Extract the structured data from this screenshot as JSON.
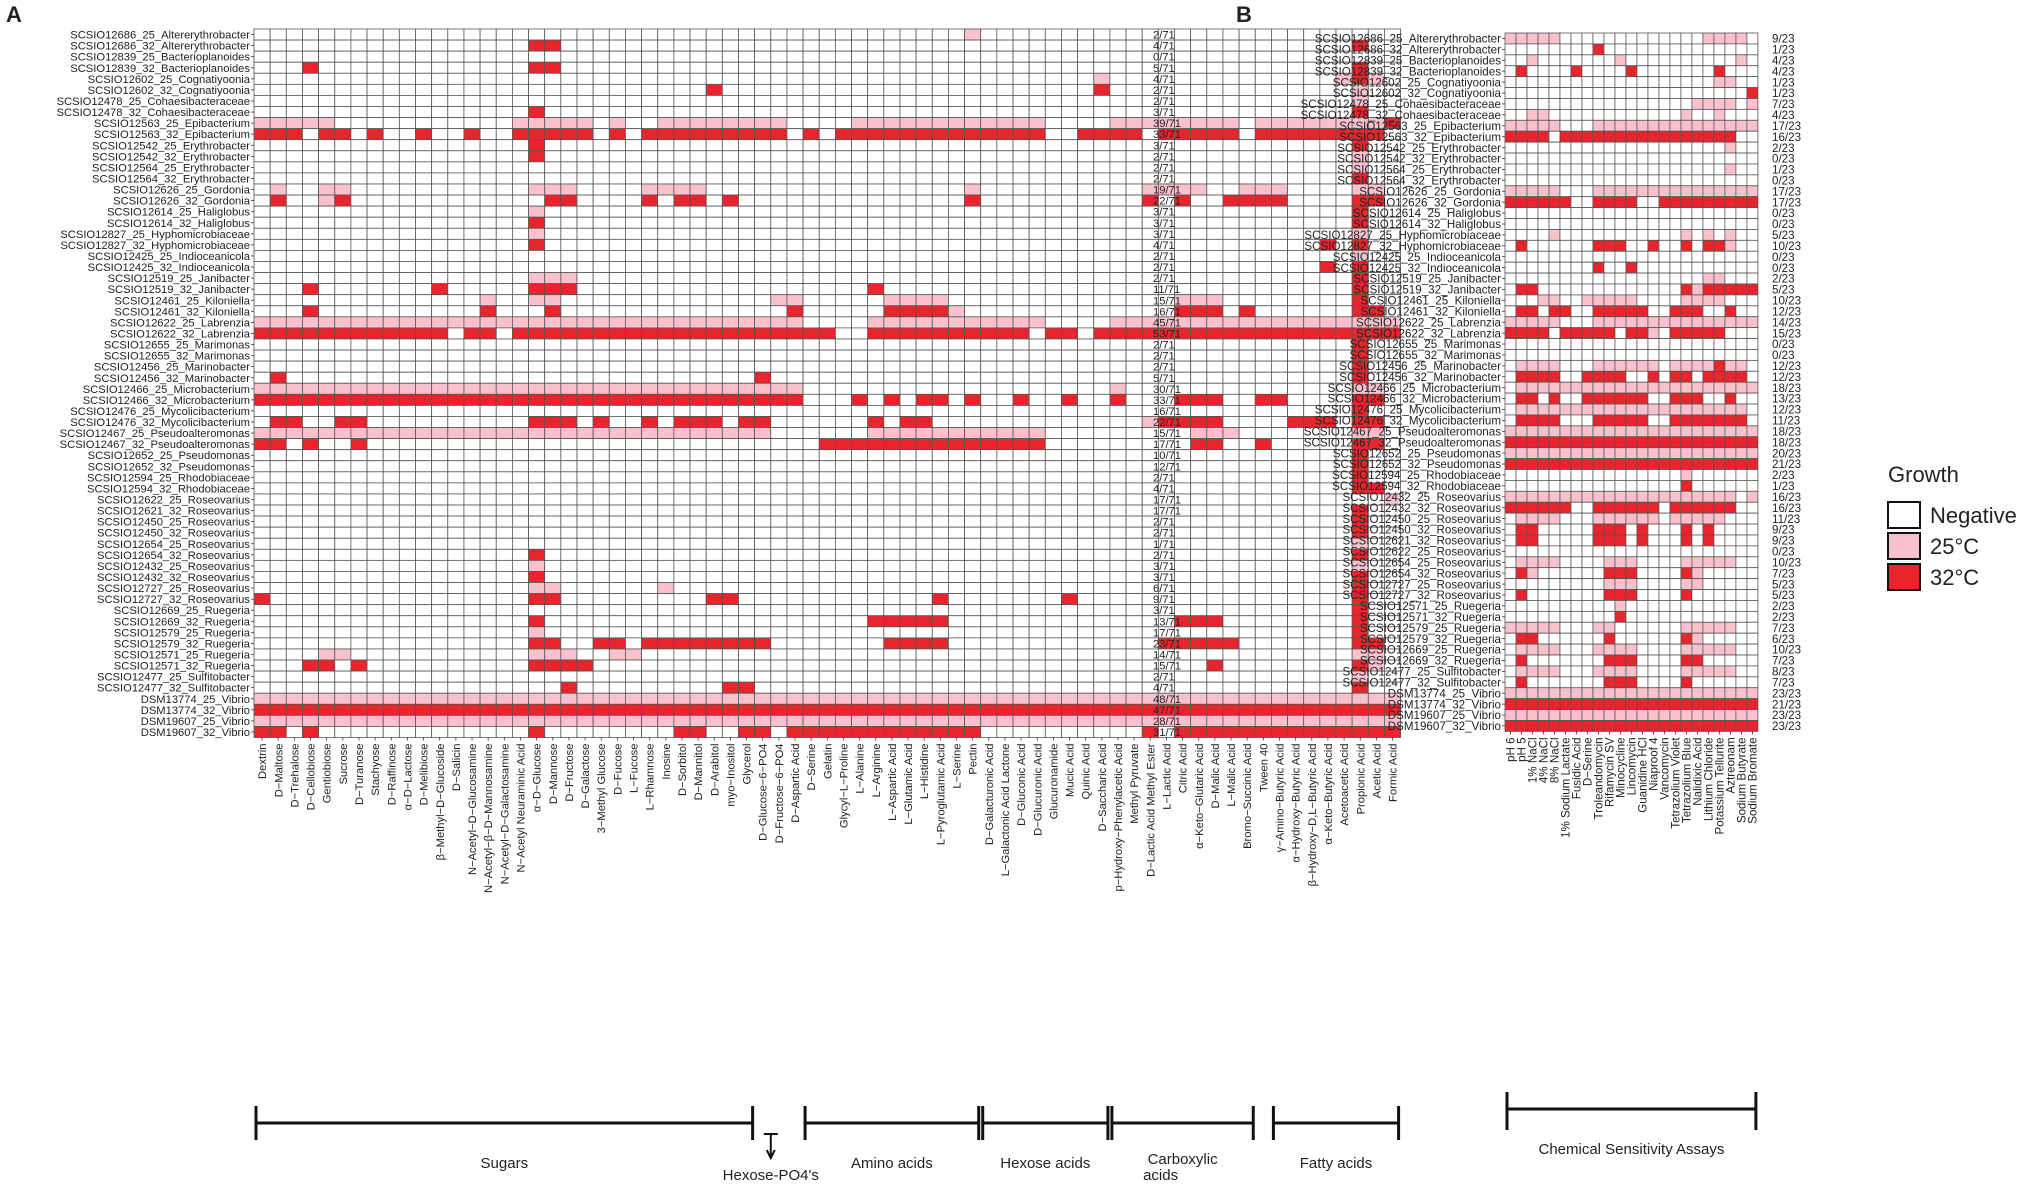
{
  "figure_labels": {
    "A": "A",
    "B": "B"
  },
  "colors": {
    "negative": "#ffffff",
    "c25": "#f8c1cb",
    "c32": "#e8242d",
    "grid": "#555555",
    "text": "#222222"
  },
  "legend": {
    "title": "Growth",
    "entries": [
      {
        "key": "negative",
        "label": "Negative"
      },
      {
        "key": "c25",
        "label": "25°C"
      },
      {
        "key": "c32",
        "label": "32°C"
      }
    ]
  },
  "chart_data": [
    {
      "type": "heatmap",
      "panel": "A",
      "title": "",
      "xlabel": "",
      "ylabel": "",
      "rows": [
        "SCSIO12686_25_Altererythrobacter",
        "SCSIO12686_32_Altererythrobacter",
        "SCSIO12839_25_Bacterioplanoides",
        "SCSIO12839_32_Bacterioplanoides",
        "SCSIO12602_25_Cognatiyoonia",
        "SCSIO12602_32_Cognatiyoonia",
        "SCSIO12478_25_Cohaesibacteraceae",
        "SCSIO12478_32_Cohaesibacteraceae",
        "SCSIO12563_25_Epibacterium",
        "SCSIO12563_32_Epibacterium",
        "SCSIO12542_25_Erythrobacter",
        "SCSIO12542_32_Erythrobacter",
        "SCSIO12564_25_Erythrobacter",
        "SCSIO12564_32_Erythrobacter",
        "SCSIO12626_25_Gordonia",
        "SCSIO12626_32_Gordonia",
        "SCSIO12614_25_Haliglobus",
        "SCSIO12614_32_Haliglobus",
        "SCSIO12827_25_Hyphomicrobiaceae",
        "SCSIO12827_32_Hyphomicrobiaceae",
        "SCSIO12425_25_Indioceanicola",
        "SCSIO12425_32_Indioceanicola",
        "SCSIO12519_25_Janibacter",
        "SCSIO12519_32_Janibacter",
        "SCSIO12461_25_Kiloniella",
        "SCSIO12461_32_Kiloniella",
        "SCSIO12622_25_Labrenzia",
        "SCSIO12622_32_Labrenzia",
        "SCSIO12655_25_Marimonas",
        "SCSIO12655_32_Marimonas",
        "SCSIO12456_25_Marinobacter",
        "SCSIO12456_32_Marinobacter",
        "SCSIO12466_25_Microbacterium",
        "SCSIO12466_32_Microbacterium",
        "SCSIO12476_25_Mycolicibacterium",
        "SCSIO12476_32_Mycolicibacterium",
        "SCSIO12467_25_Pseudoalteromonas",
        "SCSIO12467_32_Pseudoalteromonas",
        "SCSIO12652_25_Pseudomonas",
        "SCSIO12652_32_Pseudomonas",
        "SCSIO12594_25_Rhodobiaceae",
        "SCSIO12594_32_Rhodobiaceae",
        "SCSIO12622_25_Roseovarius",
        "SCSIO12621_32_Roseovarius",
        "SCSIO12450_25_Roseovarius",
        "SCSIO12450_32_Roseovarius",
        "SCSIO12654_25_Roseovarius",
        "SCSIO12654_32_Roseovarius",
        "SCSIO12432_25_Roseovarius",
        "SCSIO12432_32_Roseovarius",
        "SCSIO12727_25_Roseovarius",
        "SCSIO12727_32_Roseovarius",
        "SCSIO12669_25_Ruegeria",
        "SCSIO12669_32_Ruegeria",
        "SCSIO12579_25_Ruegeria",
        "SCSIO12579_32_Ruegeria",
        "SCSIO12571_25_Ruegeria",
        "SCSIO12571_32_Ruegeria",
        "SCSIO12477_25_Sulfitobacter",
        "SCSIO12477_32_Sulfitobacter",
        "DSM13774_25_Vibrio",
        "DSM13774_32_Vibrio",
        "DSM19607_25_Vibrio",
        "DSM19607_32_Vibrio"
      ],
      "columns": [
        "Dextrin",
        "D−Maltose",
        "D−Trehalose",
        "D−Cellobiose",
        "Gentiobiose",
        "Sucrose",
        "D−Turanose",
        "Stachyose",
        "D−Raffinose",
        "α−D−Lactose",
        "D−Melibiose",
        "β−Methyl−D−Glucoside",
        "D−Salicin",
        "N−Acetyl−D−Glucosamine",
        "N−Acetyl−β−D−Mannosamine",
        "N−Acetyl−D−Galactosamine",
        "N−Acetyl Neuraminic Acid",
        "α−D−Glucose",
        "D−Mannose",
        "D−Fructose",
        "D−Galactose",
        "3−Methyl Glucose",
        "D−Fucose",
        "L−Fucose",
        "L−Rhamnose",
        "Inosine",
        "D−Sorbitol",
        "D−Mannitol",
        "D−Arabitol",
        "myo−Inositol",
        "Glycerol",
        "D−Glucose−6−PO4",
        "D−Fructose−6−PO4",
        "D−Aspartic Acid",
        "D−Serine",
        "Gelatin",
        "Glycyl−L−Proline",
        "L−Alanine",
        "L−Arginine",
        "L−Aspartic Acid",
        "L−Glutamic Acid",
        "L−Histidine",
        "L−Pyroglutamic Acid",
        "L−Serine",
        "Pectin",
        "D−Galacturonic Acid",
        "L−Galactonic Acid Lactone",
        "D−Gluconic Acid",
        "D−Glucuronic Acid",
        "Glucuronamide",
        "Mucic Acid",
        "Quinic Acid",
        "D−Saccharic Acid",
        "p−Hydroxy−Phenylacetic Acid",
        "Methyl Pyruvate",
        "D−Lactic Acid Methyl Ester",
        "L−Lactic Acid",
        "Citric Acid",
        "α−Keto−Glutaric Acid",
        "D−Malic Acid",
        "L−Malic Acid",
        "Bromo−Succinic Acid",
        "Tween 40",
        "γ−Amino−Butyric Acid",
        "α−Hydroxy−Butyric Acid",
        "β−Hydroxy−D,L−Butyric Acid",
        "α−Keto−Butyric Acid",
        "Acetoacetic Acid",
        "Propionic Acid",
        "Acetic Acid",
        "Formic Acid"
      ],
      "value_legend": {
        "0": "Negative",
        "1": "25°C",
        "2": "32°C"
      },
      "values": [
        "00000000000000000000000000000000000000000000100000000000000000000000000",
        "00000000000000000220000000000000000000000000000000000000000000000000200",
        "00000000000000000000000000000000000000000000000000000000000000000000000",
        "00020000000000000220000000000000000000000000000000000000000000000000200",
        "00000000000000000000000000000000000000000000000000001000000000000001210",
        "00000000000000000000000000002000000000000000000000002000000000000000100",
        "00000000000000000000000000000000000000000000000000000000000000000000100",
        "00000000000000000200000000000000000000000000000000000000000000000000200",
        "11111000000000001111101001111111100001111111111110000111111110111111112",
        "22202202002002002222202022222222202022222222222220022220222220222222220",
        "00000000000000000200000000000000000000000000000000000000000000000000200",
        "00000000000000000200000000000000000000000000000000000000000000000000100",
        "00000000000000000000000000000000000000000000000000000000000000000000100",
        "00000000000000000000000000000000000000000000000000000000000000000000200",
        "01001100000000000111000011110000000000000000100000000001111001110000110",
        "02001200000000000022000020220200000000000000200000000002020022220000220",
        "00000000000000000100000000000000000000000000000000000000000000000000200",
        "00000000000000000200000000000000000000000000000000000000000000000000200",
        "00000000000000000100000000000000000000000000000000000000000000000000100",
        "00000000000000000200000000000000000000000000000000000000000000000020200",
        "00000000000000000000000000000000000000000000000000000000000000000000100",
        "00000000000000000000000000000000000000000000000000000000000000000020200",
        "00000000000000000111000000000000000000000000000000000000000000000000200",
        "00020000000200000222000000000000000000200000000000000000000000000000200",
        "00000000000000100110000000000000110000011110000000000000011100000000200",
        "00020000000000200020000000000000020000022221000000000000022202000000220",
        "11111111111111111111111111111111110000111111111110000111111111111111111",
        "22222222222202202222222222222222222200222222222202202222222222222222222",
        "00000000000000000000000000000000000000000000000000000000000000000000200",
        "00000000000000000000000000000000000000000000000000000000000000000000200",
        "00000000000000000000000000000000000000000000000000000000000000000000200",
        "02000000000000000000000000000002000000000000000000000000000000000000200",
        "11111111111111111111111111111111110000000000000000000100000000000000110",
        "22222222222222222222222222222222220002020220200200200200022200220000220",
        "00000000000000000000000000000000000000000000000000000000000000000000200",
        "02200220000000000222020020222022000000202200000000000001222200002220220",
        "11111111111111111111111111111111000000111111111110000000001110000000110",
        "22020020000000000000000000000000000222222222222220000000002200200000220",
        "00000000000000000000000000000000000000000000000000000000000000000000200",
        "00000000000000000000000000000000000000000000000000000000000000000000200",
        "00000000000000000000000000000000000000000000000000000000000000000000200",
        "00000000000000000000000000000000000000000000000000000000000000000000220",
        "00000000000000000000000000000000000000000000000000000000000000000000001",
        "00000000000000000000000000000000000000000000000000000000000000000000200",
        "00000000000000000000000000000000000000000000000000000000000000000000200",
        "00000000000000000000000000000000000000000000000000000000000000000000200",
        "00000000000000000000000000000000000000000000000000000000000000000000100",
        "00000000000000000200000000000000000000000000000000000000000000000000200",
        "00000000000000000100000000000000000000000000000000000000000000000000100",
        "00000000000000000200000000000000000000000000000000000000000000000000200",
        "00000000000000000110000001000000000000000000000000000000000000000000200",
        "20000000000000000220000000002200000000000020000000200000000000000000200",
        "00000000000000000000000000000000000000000000000000000000000000000000200",
        "00000000000000000200000000000000000000222220000000000000022200000000200",
        "00000000000000000100000000000000000000000000000000000000000000000000200",
        "00000000000000000220022022222222000000022220000000000000222220000000220",
        "00001100000000000111001100000000000000000000000000000000000000000000110",
        "00022020000000000222200000000000000000000000000000000000000200000000210",
        "00000000000000000000000000000000000000000000000000000000000000000000100",
        "00000000000000000002000000000220000000000000000000000000000000000000200",
        "11111111111111111111111111111111111111111111111111111111111111111111111",
        "22222222222222222222222222222222222222222222222222222222222222222222222",
        "11111111111111111111111111111111111111111111111111111111111111111111111",
        "22020000000000000200000000220022022222222222200000000002022222222222222"
      ],
      "row_totals": [
        "2/71",
        "4/71",
        "0/71",
        "5/71",
        "4/71",
        "2/71",
        "2/71",
        "3/71",
        "39/71",
        "33/71",
        "3/71",
        "2/71",
        "2/71",
        "2/71",
        "19/71",
        "22/71",
        "3/71",
        "3/71",
        "3/71",
        "4/71",
        "2/71",
        "2/71",
        "2/71",
        "11/71",
        "15/71",
        "16/71",
        "45/71",
        "53/71",
        "2/71",
        "2/71",
        "2/71",
        "5/71",
        "30/71",
        "33/71",
        "16/71",
        "22/71",
        "15/71",
        "17/71",
        "10/71",
        "12/71",
        "2/71",
        "4/71",
        "17/71",
        "17/71",
        "2/71",
        "2/71",
        "1/71",
        "2/71",
        "3/71",
        "3/71",
        "6/71",
        "9/71",
        "3/71",
        "13/71",
        "17/71",
        "23/71",
        "14/71",
        "15/71",
        "2/71",
        "4/71",
        "48/71",
        "47/71",
        "28/71",
        "31/71"
      ],
      "groups": [
        {
          "label": "Sugars",
          "start": 0,
          "end": 30,
          "row": 0
        },
        {
          "label": "Hexose-PO4's",
          "start": 31,
          "end": 32,
          "row": 1
        },
        {
          "label": "Amino acids",
          "start": 34,
          "end": 44,
          "row": 0
        },
        {
          "label": "Hexose acids",
          "start": 45,
          "end": 52,
          "row": 0
        },
        {
          "label": "Carboxylic acids",
          "start": 53,
          "end": 61,
          "row": 0
        },
        {
          "label": "Fatty acids",
          "start": 63,
          "end": 70,
          "row": 0
        }
      ]
    },
    {
      "type": "heatmap",
      "panel": "B",
      "title": "",
      "xlabel": "",
      "ylabel": "",
      "rows": [
        "SCSIO12686_25_Altererythrobacter",
        "SCSIO12686_32_Altererythrobacter",
        "SCSIO12839_25_Bacterioplanoides",
        "SCSIO12839_32_Bacterioplanoides",
        "SCSIO12602_25_Cognatiyoonia",
        "SCSIO12602_32_Cognatiyoonia",
        "SCSIO12478_25_Cohaesibacteraceae",
        "SCSIO12478_32_Cohaesibacteraceae",
        "SCSIO12563_25_Epibacterium",
        "SCSIO12563_32_Epibacterium",
        "SCSIO12542_25_Erythrobacter",
        "SCSIO12542_32_Erythrobacter",
        "SCSIO12564_25_Erythrobacter",
        "SCSIO12564_32_Erythrobacter",
        "SCSIO12626_25_Gordonia",
        "SCSIO12626_32_Gordonia",
        "SCSIO12614_25_Haliglobus",
        "SCSIO12614_32_Haliglobus",
        "SCSIO12827_25_Hyphomicrobiaceae",
        "SCSIO12827_32_Hyphomicrobiaceae",
        "SCSIO12425_25_Indioceanicola",
        "SCSIO12425_32_Indioceanicola",
        "SCSIO12519_25_Janibacter",
        "SCSIO12519_32_Janibacter",
        "SCSIO12461_25_Kiloniella",
        "SCSIO12461_32_Kiloniella",
        "SCSIO12622_25_Labrenzia",
        "SCSIO12622_32_Labrenzia",
        "SCSIO12655_25_Marimonas",
        "SCSIO12655_32_Marimonas",
        "SCSIO12456_25_Marinobacter",
        "SCSIO12456_32_Marinobacter",
        "SCSIO12466_25_Microbacterium",
        "SCSIO12466_32_Microbacterium",
        "SCSIO12476_25_Mycolicibacterium",
        "SCSIO12476_32_Mycolicibacterium",
        "SCSIO12467_25_Pseudoalteromonas",
        "SCSIO12467_32_Pseudoalteromonas",
        "SCSIO12652_25_Pseudomonas",
        "SCSIO12652_32_Pseudomonas",
        "SCSIO12594_25_Rhodobiaceae",
        "SCSIO12594_32_Rhodobiaceae",
        "SCSIO12432_25_Roseovarius",
        "SCSIO12432_32_Roseovarius",
        "SCSIO12450_25_Roseovarius",
        "SCSIO12450_32_Roseovarius",
        "SCSIO12621_32_Roseovarius",
        "SCSIO12622_25_Roseovarius",
        "SCSIO12654_25_Roseovarius",
        "SCSIO12654_32_Roseovarius",
        "SCSIO12727_25_Roseovarius",
        "SCSIO12727_32_Roseovarius",
        "SCSIO12571_25_Ruegeria",
        "SCSIO12571_32_Ruegeria",
        "SCSIO12579_25_Ruegeria",
        "SCSIO12579_32_Ruegeria",
        "SCSIO12669_25_Ruegeria",
        "SCSIO12669_32_Ruegeria",
        "SCSIO12477_25_Sulfitobacter",
        "SCSIO12477_32_Sulfitobacter",
        "DSM13774_25_Vibrio",
        "DSM13774_32_Vibrio",
        "DSM19607_25_Vibrio",
        "DSM19607_32_Vibrio"
      ],
      "columns": [
        "pH 6",
        "pH 5",
        "1% NaCl",
        "4% NaCl",
        "8% NaCl",
        "1% Sodium Lactate",
        "Fusidic Acid",
        "D−Serine",
        "Troleandomycin",
        "Rifamycin SV",
        "Minocycline",
        "Lincomycin",
        "Guanidine HCl",
        "Niaproof 4",
        "Vancomycin",
        "Tetrazolium Violet",
        "Tetrazolium Blue",
        "Nalidixic Acid",
        "Lithium Chloride",
        "Potassium Tellurite",
        "Aztreonam",
        "Sodium Butyrate",
        "Sodium Bromate"
      ],
      "value_legend": {
        "0": "Negative",
        "1": "25°C",
        "2": "32°C"
      },
      "values": [
        "11111000000000000011110",
        "00000000200000000000000",
        "00100000001000000000010",
        "02000020000200000002000",
        "00000000000000000001100",
        "00000000000000000000002",
        "00000000000000000111101",
        "00110000000000001001000",
        "11111000111111111111111",
        "22220222222222222222200",
        "00000000000000000000100",
        "00000000000000000000000",
        "00000000000000000000100",
        "00000000000000000000000",
        "11111000111111111111111",
        "22222200222200222222222",
        "00000000000000000000000",
        "00000000000000000000000",
        "00001000000000001010100",
        "02000000222002002022100",
        "00000000000000000000000",
        "00000000200200000000000",
        "00000000000000000011000",
        "02200000000000002122222",
        "00011001111100001111000",
        "02202200222220022200200",
        "11111000111111111111111",
        "22220222220221022222000",
        "00000000000000000000000",
        "00000000000000000000000",
        "01111000111111011112110",
        "02222002222002022022220",
        "01111111111111111111111",
        "02202002222220022200200",
        "01111111111111111111110",
        "02222000222220022222220",
        "11111111111111111111111",
        "22222222222222222222222",
        "11111111111111111111111",
        "22222222222222222222222",
        "00000000000000001000000",
        "00000000000000002000000",
        "11111111111111111111101",
        "22222200222222022222200",
        "01111000111111011111000",
        "02200000222020002020000",
        "02200000222020002020000",
        "00000000000000000000000",
        "01111000011100001111100",
        "02100000022200002100000",
        "00000000011100001100000",
        "02000000022200002000000",
        "00000000001000000000000",
        "00000000002000000000000",
        "11111000110000001111100",
        "02200000020000002100000",
        "01111000111100001111100",
        "02000000022200002200000",
        "01111000111100001111100",
        "02000000022200002000000",
        "11111111111111111111111",
        "22222222222222222222222",
        "11111111111111111111111",
        "22222222222222222222222"
      ],
      "row_totals": [
        "9/23",
        "1/23",
        "4/23",
        "4/23",
        "1/23",
        "1/23",
        "7/23",
        "4/23",
        "17/23",
        "16/23",
        "2/23",
        "0/23",
        "1/23",
        "0/23",
        "17/23",
        "17/23",
        "0/23",
        "0/23",
        "5/23",
        "10/23",
        "0/23",
        "0/23",
        "2/23",
        "5/23",
        "10/23",
        "12/23",
        "14/23",
        "15/23",
        "0/23",
        "0/23",
        "12/23",
        "12/23",
        "18/23",
        "13/23",
        "12/23",
        "11/23",
        "18/23",
        "18/23",
        "20/23",
        "21/23",
        "2/23",
        "1/23",
        "16/23",
        "16/23",
        "11/23",
        "9/23",
        "9/23",
        "0/23",
        "10/23",
        "7/23",
        "5/23",
        "5/23",
        "2/23",
        "2/23",
        "7/23",
        "6/23",
        "10/23",
        "7/23",
        "8/23",
        "7/23",
        "23/23",
        "21/23",
        "23/23",
        "23/23"
      ],
      "groups": [
        {
          "label": "Chemical Sensitivity Assays",
          "start": 0,
          "end": 22,
          "row": 0
        }
      ]
    }
  ]
}
